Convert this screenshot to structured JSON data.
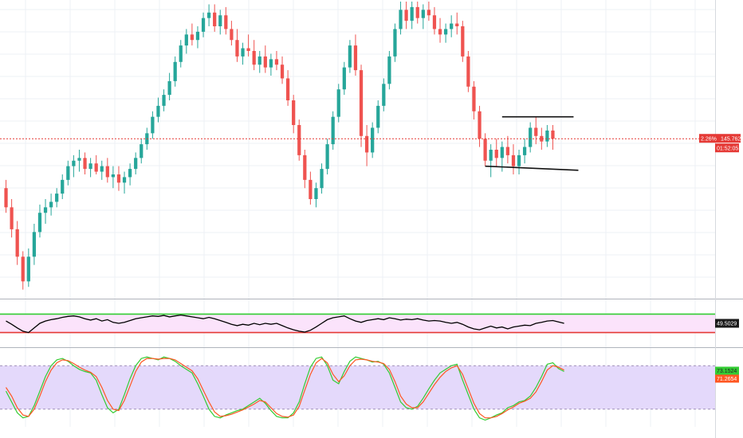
{
  "colors": {
    "bull": "#26a69a",
    "bear": "#ef5350",
    "price_line": "#e53935",
    "rsi_line": "#000000",
    "rsi_band_fill": "#fbe3fb",
    "rsi_upper": "#33cc33",
    "rsi_lower": "#e53935",
    "stoch_band_fill": "#e4d9fb",
    "stoch_k": "#33cc33",
    "stoch_d": "#ff5722",
    "grid": "#eef1f5",
    "separator": "#b0b4bc"
  },
  "chart_data": [
    {
      "type": "candlestick",
      "pane": "price",
      "grid": true,
      "ylim": [
        140.0,
        150.8
      ],
      "annotations": [
        "horizontal-resistance-line",
        "horizontal-support-line",
        "current-price-dashed-line"
      ],
      "last_price_label": {
        "change": "2.26%",
        "price": "145.762"
      },
      "countdown": "01:52:05",
      "ohlc": [
        [
          144.0,
          144.3,
          143.1,
          143.3
        ],
        [
          143.3,
          143.6,
          142.2,
          142.5
        ],
        [
          142.5,
          142.8,
          141.2,
          141.5
        ],
        [
          141.5,
          141.7,
          140.3,
          140.6
        ],
        [
          140.6,
          141.8,
          140.4,
          141.5
        ],
        [
          141.5,
          142.7,
          141.2,
          142.4
        ],
        [
          142.4,
          143.4,
          142.2,
          143.1
        ],
        [
          143.1,
          143.6,
          142.7,
          143.3
        ],
        [
          143.3,
          143.8,
          143.0,
          143.5
        ],
        [
          143.5,
          144.0,
          143.3,
          143.8
        ],
        [
          143.8,
          144.5,
          143.6,
          144.3
        ],
        [
          144.3,
          145.0,
          144.1,
          144.8
        ],
        [
          144.8,
          145.2,
          144.4,
          145.0
        ],
        [
          145.0,
          145.4,
          144.6,
          145.1
        ],
        [
          145.1,
          145.3,
          144.5,
          144.7
        ],
        [
          144.7,
          145.1,
          144.4,
          144.9
        ],
        [
          144.9,
          145.2,
          144.5,
          144.6
        ],
        [
          144.6,
          145.0,
          144.3,
          144.8
        ],
        [
          144.8,
          145.1,
          144.2,
          144.4
        ],
        [
          144.4,
          144.8,
          144.0,
          144.5
        ],
        [
          144.5,
          144.8,
          143.9,
          144.2
        ],
        [
          144.2,
          144.6,
          143.8,
          144.4
        ],
        [
          144.4,
          144.9,
          144.1,
          144.7
        ],
        [
          144.7,
          145.3,
          144.5,
          145.1
        ],
        [
          145.1,
          145.8,
          144.9,
          145.6
        ],
        [
          145.6,
          146.2,
          145.4,
          146.0
        ],
        [
          146.0,
          146.8,
          145.8,
          146.6
        ],
        [
          146.6,
          147.3,
          146.4,
          147.0
        ],
        [
          147.0,
          147.6,
          146.8,
          147.4
        ],
        [
          147.4,
          148.2,
          147.2,
          147.9
        ],
        [
          147.9,
          148.8,
          147.7,
          148.6
        ],
        [
          148.6,
          149.4,
          148.4,
          149.2
        ],
        [
          149.2,
          149.8,
          148.9,
          149.6
        ],
        [
          149.6,
          150.0,
          149.2,
          149.4
        ],
        [
          149.4,
          149.9,
          149.1,
          149.7
        ],
        [
          149.7,
          150.4,
          149.5,
          150.2
        ],
        [
          150.2,
          150.7,
          149.9,
          150.4
        ],
        [
          150.4,
          150.7,
          149.7,
          149.9
        ],
        [
          149.9,
          150.5,
          149.6,
          150.3
        ],
        [
          150.3,
          150.6,
          149.6,
          149.8
        ],
        [
          149.8,
          150.1,
          149.2,
          149.4
        ],
        [
          149.4,
          149.8,
          148.6,
          148.8
        ],
        [
          148.8,
          149.3,
          148.5,
          149.1
        ],
        [
          149.1,
          149.6,
          148.8,
          149.0
        ],
        [
          149.0,
          149.4,
          148.3,
          148.5
        ],
        [
          148.5,
          149.0,
          148.2,
          148.8
        ],
        [
          148.8,
          149.2,
          148.2,
          148.4
        ],
        [
          148.4,
          148.9,
          148.1,
          148.7
        ],
        [
          148.7,
          149.0,
          148.3,
          148.5
        ],
        [
          148.5,
          148.8,
          147.8,
          148.0
        ],
        [
          148.0,
          148.3,
          147.0,
          147.2
        ],
        [
          147.2,
          147.4,
          146.0,
          146.3
        ],
        [
          146.3,
          146.5,
          145.0,
          145.2
        ],
        [
          145.2,
          145.4,
          144.0,
          144.3
        ],
        [
          144.3,
          144.6,
          143.4,
          143.6
        ],
        [
          143.6,
          144.2,
          143.3,
          144.0
        ],
        [
          144.0,
          144.9,
          143.8,
          144.7
        ],
        [
          144.7,
          145.8,
          144.5,
          145.6
        ],
        [
          145.6,
          146.8,
          145.4,
          146.6
        ],
        [
          146.6,
          147.8,
          146.4,
          147.6
        ],
        [
          147.6,
          148.6,
          147.4,
          148.4
        ],
        [
          148.4,
          149.4,
          148.2,
          149.2
        ],
        [
          149.2,
          149.6,
          148.1,
          148.3
        ],
        [
          148.3,
          148.5,
          145.5,
          145.9
        ],
        [
          145.9,
          146.3,
          144.8,
          145.3
        ],
        [
          145.3,
          146.4,
          145.1,
          146.2
        ],
        [
          146.2,
          147.2,
          146.0,
          147.0
        ],
        [
          147.0,
          148.0,
          146.8,
          147.8
        ],
        [
          147.8,
          149.0,
          147.6,
          148.8
        ],
        [
          148.8,
          150.0,
          148.6,
          149.8
        ],
        [
          149.8,
          150.8,
          149.6,
          150.5
        ],
        [
          150.5,
          150.8,
          149.8,
          150.1
        ],
        [
          150.1,
          150.8,
          149.8,
          150.6
        ],
        [
          150.6,
          150.8,
          150.0,
          150.2
        ],
        [
          150.2,
          150.7,
          149.8,
          150.5
        ],
        [
          150.5,
          150.8,
          150.1,
          150.3
        ],
        [
          150.3,
          150.6,
          149.6,
          149.8
        ],
        [
          149.8,
          150.2,
          149.3,
          149.6
        ],
        [
          149.6,
          150.0,
          149.3,
          149.8
        ],
        [
          149.8,
          150.3,
          149.5,
          150.0
        ],
        [
          150.0,
          150.4,
          149.6,
          149.9
        ],
        [
          149.9,
          150.1,
          148.6,
          148.8
        ],
        [
          148.8,
          149.0,
          147.5,
          147.7
        ],
        [
          147.7,
          147.9,
          146.5,
          146.8
        ],
        [
          146.8,
          147.0,
          145.5,
          145.8
        ],
        [
          145.8,
          146.0,
          144.8,
          145.0
        ],
        [
          145.0,
          145.6,
          144.4,
          145.4
        ],
        [
          145.4,
          145.8,
          144.8,
          145.1
        ],
        [
          145.1,
          145.7,
          144.6,
          145.5
        ],
        [
          145.5,
          145.9,
          144.9,
          145.2
        ],
        [
          145.2,
          145.6,
          144.5,
          144.8
        ],
        [
          144.8,
          145.4,
          144.5,
          145.2
        ],
        [
          145.2,
          145.8,
          144.9,
          145.5
        ],
        [
          145.5,
          146.4,
          145.3,
          146.2
        ],
        [
          146.2,
          146.6,
          145.6,
          145.9
        ],
        [
          145.9,
          146.2,
          145.4,
          145.7
        ],
        [
          145.7,
          146.3,
          145.5,
          146.1
        ],
        [
          146.1,
          146.3,
          145.4,
          145.8
        ]
      ]
    },
    {
      "type": "line",
      "pane": "rsi",
      "value_label": "49.5029",
      "ylim": [
        0,
        100
      ],
      "upper_level": 70,
      "lower_level": 30,
      "values": [
        55,
        48,
        40,
        33,
        30,
        40,
        50,
        55,
        58,
        60,
        63,
        65,
        66,
        64,
        60,
        57,
        60,
        55,
        58,
        52,
        50,
        52,
        56,
        60,
        62,
        64,
        66,
        65,
        67,
        64,
        66,
        68,
        66,
        64,
        62,
        60,
        63,
        60,
        56,
        52,
        48,
        45,
        48,
        46,
        50,
        47,
        50,
        48,
        50,
        45,
        40,
        36,
        33,
        31,
        35,
        42,
        50,
        58,
        62,
        64,
        66,
        60,
        55,
        52,
        56,
        58,
        60,
        58,
        62,
        60,
        57,
        59,
        58,
        60,
        57,
        55,
        56,
        55,
        52,
        50,
        52,
        48,
        42,
        38,
        36,
        40,
        44,
        40,
        42,
        38,
        42,
        44,
        46,
        45,
        50,
        52,
        55,
        56,
        53,
        50
      ]
    },
    {
      "type": "line",
      "pane": "stochastic",
      "series_labels": [
        "73.1524",
        "71.2654"
      ],
      "ylim": [
        0,
        100
      ],
      "upper_level": 80,
      "lower_level": 20,
      "k": [
        45,
        30,
        15,
        8,
        10,
        25,
        45,
        65,
        80,
        88,
        90,
        86,
        80,
        75,
        72,
        70,
        60,
        40,
        22,
        15,
        20,
        40,
        62,
        80,
        90,
        92,
        90,
        88,
        92,
        90,
        86,
        80,
        75,
        70,
        55,
        38,
        20,
        10,
        8,
        12,
        15,
        18,
        20,
        25,
        30,
        35,
        28,
        18,
        10,
        8,
        8,
        15,
        30,
        55,
        78,
        90,
        92,
        80,
        60,
        55,
        72,
        86,
        92,
        90,
        88,
        85,
        86,
        82,
        70,
        50,
        30,
        22,
        20,
        24,
        35,
        48,
        60,
        70,
        75,
        80,
        82,
        60,
        40,
        20,
        8,
        5,
        8,
        12,
        15,
        22,
        25,
        30,
        32,
        38,
        50,
        65,
        82,
        84,
        76,
        72
      ],
      "d": [
        50,
        38,
        22,
        12,
        10,
        20,
        38,
        58,
        74,
        84,
        88,
        87,
        83,
        78,
        74,
        71,
        65,
        50,
        32,
        20,
        18,
        32,
        52,
        72,
        85,
        90,
        90,
        89,
        90,
        90,
        88,
        83,
        78,
        73,
        62,
        46,
        30,
        16,
        10,
        11,
        13,
        16,
        19,
        23,
        27,
        32,
        30,
        22,
        14,
        10,
        9,
        12,
        24,
        46,
        68,
        84,
        90,
        84,
        68,
        58,
        66,
        80,
        88,
        89,
        88,
        86,
        85,
        83,
        75,
        58,
        38,
        27,
        22,
        22,
        30,
        42,
        54,
        64,
        72,
        77,
        80,
        68,
        48,
        28,
        14,
        8,
        8,
        10,
        14,
        19,
        23,
        28,
        31,
        35,
        44,
        58,
        74,
        80,
        78,
        74
      ]
    }
  ]
}
